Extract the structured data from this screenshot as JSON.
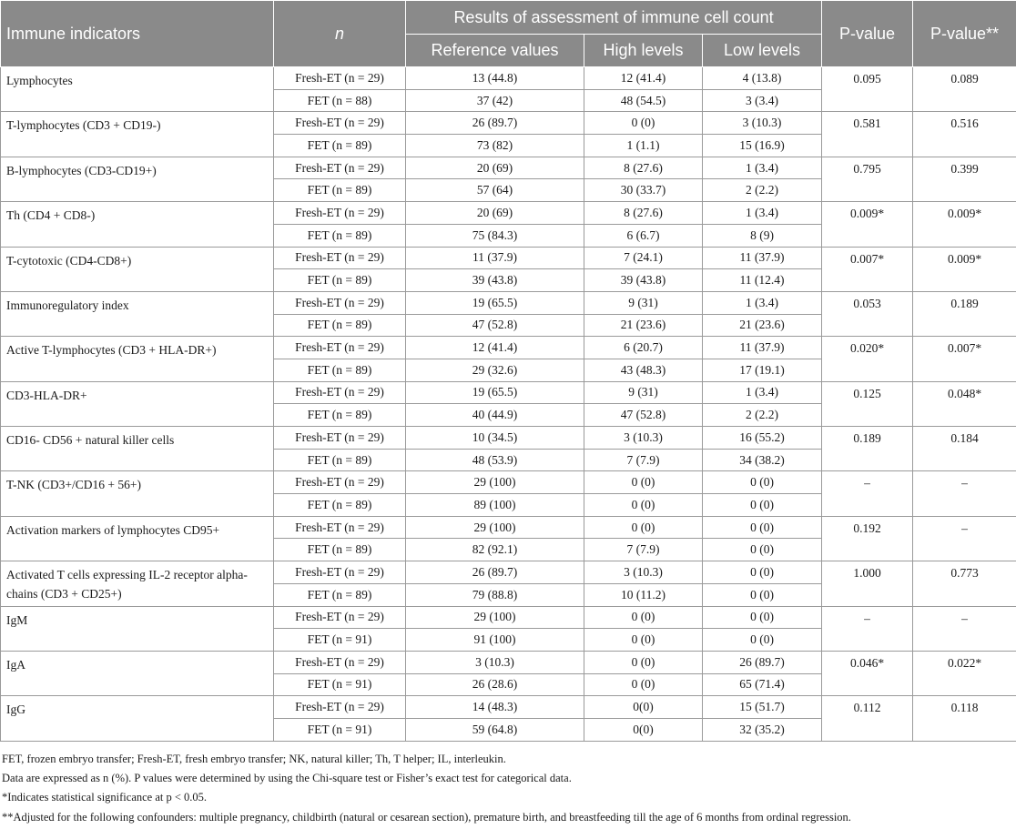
{
  "header": {
    "col_indicator": "Immune indicators",
    "col_n": "n",
    "col_results": "Results of assessment of immune cell count",
    "col_pvalue": "P-value",
    "col_pvalue_adj": "P-value**",
    "sub_reference": "Reference values",
    "sub_high": "High levels",
    "sub_low": "Low levels"
  },
  "rows": [
    {
      "indicator": "Lymphocytes",
      "p": "0.095",
      "p_adj": "0.089",
      "groups": [
        {
          "label": "Fresh-ET (n = 29)",
          "ref": "13 (44.8)",
          "high": "12 (41.4)",
          "low": "4 (13.8)"
        },
        {
          "label": "FET (n = 88)",
          "ref": "37 (42)",
          "high": "48 (54.5)",
          "low": "3 (3.4)"
        }
      ]
    },
    {
      "indicator": "T-lymphocytes (CD3 + CD19-)",
      "p": "0.581",
      "p_adj": "0.516",
      "groups": [
        {
          "label": "Fresh-ET (n = 29)",
          "ref": "26 (89.7)",
          "high": "0 (0)",
          "low": "3 (10.3)"
        },
        {
          "label": "FET (n = 89)",
          "ref": "73 (82)",
          "high": "1 (1.1)",
          "low": "15 (16.9)"
        }
      ]
    },
    {
      "indicator": "B-lymphocytes (CD3-CD19+)",
      "p": "0.795",
      "p_adj": "0.399",
      "groups": [
        {
          "label": "Fresh-ET (n = 29)",
          "ref": "20 (69)",
          "high": "8 (27.6)",
          "low": "1 (3.4)"
        },
        {
          "label": "FET (n = 89)",
          "ref": "57 (64)",
          "high": "30 (33.7)",
          "low": "2 (2.2)"
        }
      ]
    },
    {
      "indicator": "Th (CD4 + CD8-)",
      "p": "0.009*",
      "p_adj": "0.009*",
      "groups": [
        {
          "label": "Fresh-ET (n = 29)",
          "ref": "20 (69)",
          "high": "8 (27.6)",
          "low": "1 (3.4)"
        },
        {
          "label": "FET (n = 89)",
          "ref": "75 (84.3)",
          "high": "6 (6.7)",
          "low": "8 (9)"
        }
      ]
    },
    {
      "indicator": "T-cytotoxic (CD4-CD8+)",
      "p": "0.007*",
      "p_adj": "0.009*",
      "groups": [
        {
          "label": "Fresh-ET (n = 29)",
          "ref": "11 (37.9)",
          "high": "7 (24.1)",
          "low": "11 (37.9)"
        },
        {
          "label": "FET (n = 89)",
          "ref": "39 (43.8)",
          "high": "39 (43.8)",
          "low": "11 (12.4)"
        }
      ]
    },
    {
      "indicator": "Immunoregulatory index",
      "p": "0.053",
      "p_adj": "0.189",
      "groups": [
        {
          "label": "Fresh-ET (n = 29)",
          "ref": "19 (65.5)",
          "high": "9 (31)",
          "low": "1 (3.4)"
        },
        {
          "label": "FET (n = 89)",
          "ref": "47 (52.8)",
          "high": "21 (23.6)",
          "low": "21 (23.6)"
        }
      ]
    },
    {
      "indicator": "Active T-lymphocytes (CD3 + HLA-DR+)",
      "p": "0.020*",
      "p_adj": "0.007*",
      "groups": [
        {
          "label": "Fresh-ET (n = 29)",
          "ref": "12 (41.4)",
          "high": "6 (20.7)",
          "low": "11 (37.9)"
        },
        {
          "label": "FET (n = 89)",
          "ref": "29 (32.6)",
          "high": "43 (48.3)",
          "low": "17 (19.1)"
        }
      ]
    },
    {
      "indicator": "CD3-HLA-DR+",
      "p": "0.125",
      "p_adj": "0.048*",
      "groups": [
        {
          "label": "Fresh-ET (n = 29)",
          "ref": "19 (65.5)",
          "high": "9 (31)",
          "low": "1 (3.4)"
        },
        {
          "label": "FET (n = 89)",
          "ref": "40 (44.9)",
          "high": "47 (52.8)",
          "low": "2 (2.2)"
        }
      ]
    },
    {
      "indicator": "CD16- CD56 + natural killer cells",
      "p": "0.189",
      "p_adj": "0.184",
      "groups": [
        {
          "label": "Fresh-ET (n = 29)",
          "ref": "10 (34.5)",
          "high": "3 (10.3)",
          "low": "16 (55.2)"
        },
        {
          "label": "FET (n = 89)",
          "ref": "48 (53.9)",
          "high": "7 (7.9)",
          "low": "34 (38.2)"
        }
      ]
    },
    {
      "indicator": "T-NK (CD3+/CD16 + 56+)",
      "p": "–",
      "p_adj": "–",
      "groups": [
        {
          "label": "Fresh-ET (n = 29)",
          "ref": "29 (100)",
          "high": "0 (0)",
          "low": "0 (0)"
        },
        {
          "label": "FET (n = 89)",
          "ref": "89 (100)",
          "high": "0 (0)",
          "low": "0 (0)"
        }
      ]
    },
    {
      "indicator": "Activation markers of lymphocytes CD95+",
      "p": "0.192",
      "p_adj": "–",
      "groups": [
        {
          "label": "Fresh-ET (n = 29)",
          "ref": "29 (100)",
          "high": "0 (0)",
          "low": "0 (0)"
        },
        {
          "label": "FET (n = 89)",
          "ref": "82 (92.1)",
          "high": "7 (7.9)",
          "low": "0 (0)"
        }
      ]
    },
    {
      "indicator": "Activated T cells expressing IL-2 receptor alpha-chains (CD3 + CD25+)",
      "p": "1.000",
      "p_adj": "0.773",
      "groups": [
        {
          "label": "Fresh-ET (n = 29)",
          "ref": "26 (89.7)",
          "high": "3 (10.3)",
          "low": "0 (0)"
        },
        {
          "label": "FET (n = 89)",
          "ref": "79 (88.8)",
          "high": "10 (11.2)",
          "low": "0 (0)"
        }
      ]
    },
    {
      "indicator": "IgM",
      "p": "–",
      "p_adj": "–",
      "groups": [
        {
          "label": "Fresh-ET (n = 29)",
          "ref": "29 (100)",
          "high": "0 (0)",
          "low": "0 (0)"
        },
        {
          "label": "FET (n = 91)",
          "ref": "91 (100)",
          "high": "0 (0)",
          "low": "0 (0)"
        }
      ]
    },
    {
      "indicator": "IgA",
      "p": "0.046*",
      "p_adj": "0.022*",
      "groups": [
        {
          "label": "Fresh-ET (n = 29)",
          "ref": "3 (10.3)",
          "high": "0 (0)",
          "low": "26 (89.7)"
        },
        {
          "label": "FET (n = 91)",
          "ref": "26 (28.6)",
          "high": "0 (0)",
          "low": "65 (71.4)"
        }
      ]
    },
    {
      "indicator": "IgG",
      "p": "0.112",
      "p_adj": "0.118",
      "groups": [
        {
          "label": "Fresh-ET (n = 29)",
          "ref": "14 (48.3)",
          "high": "0(0)",
          "low": "15 (51.7)"
        },
        {
          "label": "FET (n = 91)",
          "ref": "59 (64.8)",
          "high": "0(0)",
          "low": "32 (35.2)"
        }
      ]
    }
  ],
  "notes": [
    "FET, frozen embryo transfer; Fresh-ET, fresh embryo transfer; NK, natural killer; Th, T helper; IL, interleukin.",
    "Data are expressed as n (%). P values were determined by using the Chi-square test or Fisher’s exact test for categorical data.",
    "*Indicates statistical significance at p < 0.05.",
    "**Adjusted for the following confounders: multiple pregnancy, childbirth (natural or cesarean section), premature birth, and breastfeeding till the age of 6 months from ordinal regression."
  ]
}
